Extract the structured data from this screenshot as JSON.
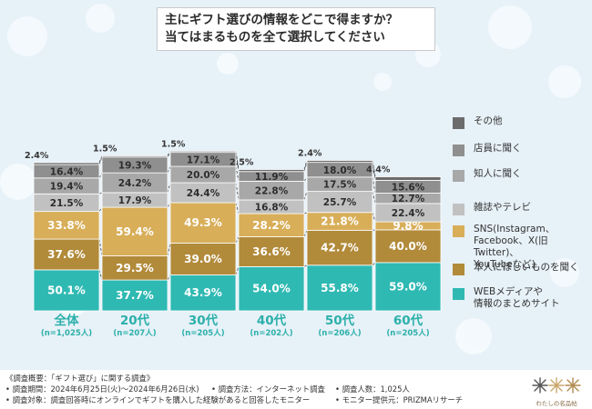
{
  "title": {
    "line1": "主にギフト選びの情報をどこで得ますか？",
    "line2": "当てはまるものを全て選択してください"
  },
  "colors": {
    "WEB": "#2fb9b3",
    "self": "#b18a3a",
    "sns": "#d8ae59",
    "magazine": "#c1c1c1",
    "acquaintance": "#a8a8a8",
    "store": "#8f8f8f",
    "other": "#6c6c6c"
  },
  "chart_data": {
    "type": "bar",
    "stacked": true,
    "categories": [
      "全体",
      "20代",
      "30代",
      "40代",
      "50代",
      "60代"
    ],
    "category_notes": [
      "(n=1,025人)",
      "(n=207人)",
      "(n=205人)",
      "(n=202人)",
      "(n=206人)",
      "(n=205人)"
    ],
    "series": [
      {
        "name": "WEBメディアや\n情報のまとめサイト",
        "key": "WEB",
        "values": [
          50.1,
          37.7,
          43.9,
          54.0,
          55.8,
          59.0
        ],
        "labels": [
          "50.1%",
          "37.7%",
          "43.9%",
          "54.0%",
          "55.8%",
          "59.0%"
        ]
      },
      {
        "name": "本人にほしいものを聞く",
        "key": "self",
        "values": [
          37.6,
          29.5,
          39.0,
          36.6,
          42.7,
          40.0
        ],
        "labels": [
          "37.6%",
          "29.5%",
          "39.0%",
          "36.6%",
          "42.7%",
          "40.0%"
        ]
      },
      {
        "name": "SNS(Instagram、\nFacebook、X(旧Twitter)、\nYouTubeなど)",
        "key": "sns",
        "values": [
          33.8,
          59.4,
          49.3,
          28.2,
          21.8,
          9.8
        ],
        "labels": [
          "33.8%",
          "59.4%",
          "49.3%",
          "28.2%",
          "21.8%",
          "9.8%"
        ]
      },
      {
        "name": "雑誌やテレビ",
        "key": "magazine",
        "values": [
          21.5,
          17.9,
          24.4,
          16.8,
          25.7,
          22.4
        ],
        "labels": [
          "21.5%",
          "17.9%",
          "24.4%",
          "16.8%",
          "25.7%",
          "22.4%"
        ]
      },
      {
        "name": "知人に聞く",
        "key": "acquaintance",
        "values": [
          19.4,
          24.2,
          20.0,
          22.8,
          17.5,
          12.7
        ],
        "labels": [
          "19.4%",
          "24.2%",
          "20.0%",
          "22.8%",
          "17.5%",
          "12.7%"
        ]
      },
      {
        "name": "店員に聞く",
        "key": "store",
        "values": [
          16.4,
          19.3,
          17.1,
          11.9,
          18.0,
          15.6
        ],
        "labels": [
          "16.4%",
          "19.3%",
          "17.1%",
          "11.9%",
          "18.0%",
          "15.6%"
        ]
      },
      {
        "name": "その他",
        "key": "other",
        "values": [
          2.4,
          1.5,
          1.5,
          2.5,
          2.4,
          4.4
        ],
        "labels": [
          "2.4%",
          "1.5%",
          "1.5%",
          "2.5%",
          "2.4%",
          "4.4%"
        ]
      }
    ],
    "legend_position": "right"
  },
  "footer": {
    "line1": "《調査概要：「ギフト選び」に関する調査》",
    "line2a": "• 調査期間：2024年6月25日(火)～2024年6月26日(水)",
    "line2b": "• 調査方法：インターネット調査",
    "line2c": "• 調査人数：1,025人",
    "line3a": "• 調査対象：調査回答時にオンラインでギフトを購入した経験があると回答したモニター",
    "line3b": "• モニター提供元：PRIZMAリサーチ"
  },
  "logo": {
    "text": "わたしの名品帖",
    "icon": "flower-logo-icon"
  }
}
